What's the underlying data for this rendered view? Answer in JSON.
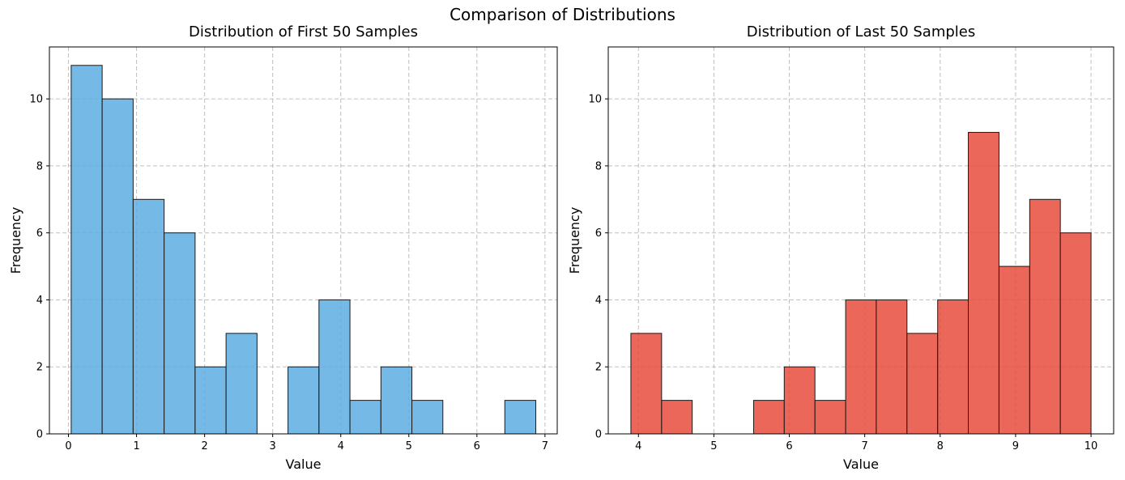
{
  "figure": {
    "title": "Comparison of Distributions"
  },
  "chart_data": [
    {
      "type": "bar",
      "title": "Distribution of First 50 Samples",
      "xlabel": "Value",
      "ylabel": "Frequency",
      "xlim": [
        -0.28,
        7.18
      ],
      "ylim": [
        0,
        11.55
      ],
      "xticks": [
        0,
        1,
        2,
        3,
        4,
        5,
        6,
        7
      ],
      "yticks": [
        0,
        2,
        4,
        6,
        8,
        10
      ],
      "grid": true,
      "color": "#5DADE2",
      "bins": [
        {
          "start": 0.04,
          "end": 0.495,
          "count": 11
        },
        {
          "start": 0.495,
          "end": 0.95,
          "count": 10
        },
        {
          "start": 0.95,
          "end": 1.405,
          "count": 7
        },
        {
          "start": 1.405,
          "end": 1.86,
          "count": 6
        },
        {
          "start": 1.86,
          "end": 2.315,
          "count": 2
        },
        {
          "start": 2.315,
          "end": 2.77,
          "count": 3
        },
        {
          "start": 2.77,
          "end": 3.225,
          "count": 0
        },
        {
          "start": 3.225,
          "end": 3.68,
          "count": 2
        },
        {
          "start": 3.68,
          "end": 4.135,
          "count": 4
        },
        {
          "start": 4.135,
          "end": 4.59,
          "count": 1
        },
        {
          "start": 4.59,
          "end": 5.045,
          "count": 2
        },
        {
          "start": 5.045,
          "end": 5.5,
          "count": 1
        },
        {
          "start": 5.5,
          "end": 5.955,
          "count": 0
        },
        {
          "start": 5.955,
          "end": 6.41,
          "count": 0
        },
        {
          "start": 6.41,
          "end": 6.865,
          "count": 1
        }
      ]
    },
    {
      "type": "bar",
      "title": "Distribution of Last 50 Samples",
      "xlabel": "Value",
      "ylabel": "Frequency",
      "xlim": [
        3.6,
        10.3
      ],
      "ylim": [
        0,
        11.55
      ],
      "xticks": [
        4,
        5,
        6,
        7,
        8,
        9,
        10
      ],
      "yticks": [
        0,
        2,
        4,
        6,
        8,
        10
      ],
      "grid": true,
      "color": "#E74C3C",
      "bins": [
        {
          "start": 3.9,
          "end": 4.307,
          "count": 3
        },
        {
          "start": 4.307,
          "end": 4.713,
          "count": 1
        },
        {
          "start": 4.713,
          "end": 5.12,
          "count": 0
        },
        {
          "start": 5.12,
          "end": 5.527,
          "count": 0
        },
        {
          "start": 5.527,
          "end": 5.933,
          "count": 1
        },
        {
          "start": 5.933,
          "end": 6.34,
          "count": 2
        },
        {
          "start": 6.34,
          "end": 6.747,
          "count": 1
        },
        {
          "start": 6.747,
          "end": 7.153,
          "count": 4
        },
        {
          "start": 7.153,
          "end": 7.56,
          "count": 4
        },
        {
          "start": 7.56,
          "end": 7.967,
          "count": 3
        },
        {
          "start": 7.967,
          "end": 8.373,
          "count": 4
        },
        {
          "start": 8.373,
          "end": 8.78,
          "count": 9
        },
        {
          "start": 8.78,
          "end": 9.187,
          "count": 5
        },
        {
          "start": 9.187,
          "end": 9.593,
          "count": 7
        },
        {
          "start": 9.593,
          "end": 10.0,
          "count": 6
        }
      ]
    }
  ]
}
